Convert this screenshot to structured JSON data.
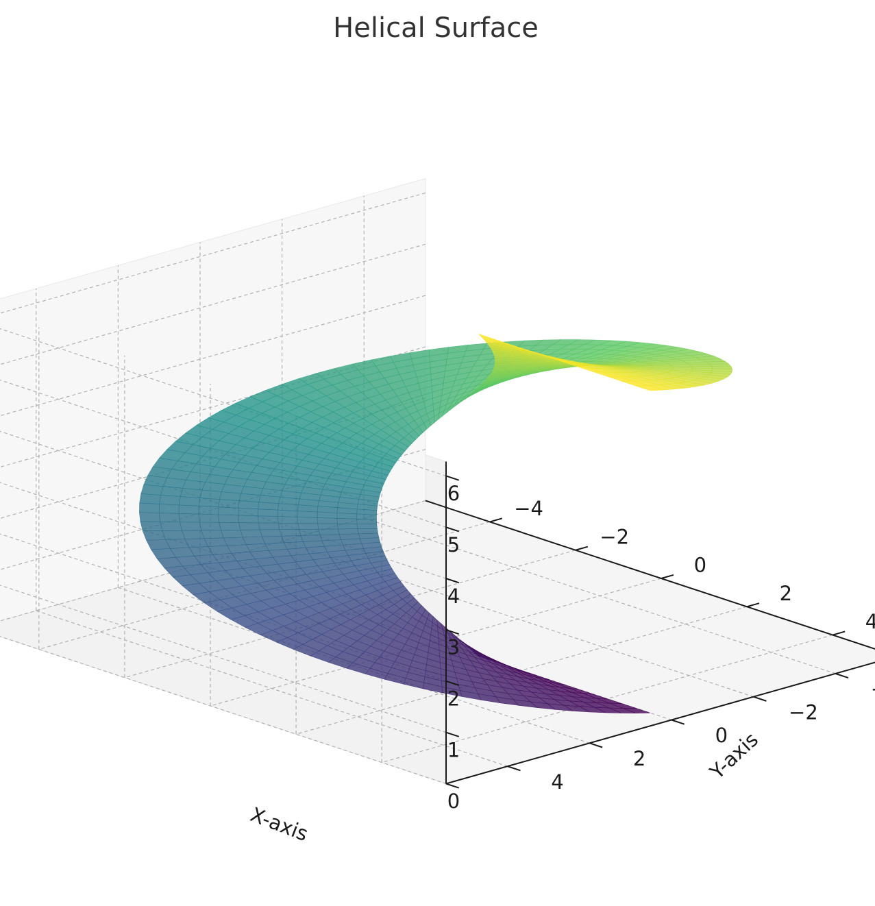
{
  "chart_data": {
    "type": "surface3d",
    "title": "Helical Surface",
    "xlabel": "X-axis",
    "ylabel": "Y-axis",
    "zlabel": "",
    "xlim": [
      -5.5,
      5.5
    ],
    "ylim": [
      -5.5,
      5.5
    ],
    "zlim": [
      0,
      6.28
    ],
    "xticks": [
      -4,
      -2,
      0,
      2,
      4
    ],
    "yticks": [
      -4,
      -2,
      0,
      2,
      4
    ],
    "zticks": [
      0,
      1,
      2,
      3,
      4,
      5,
      6
    ],
    "surface": {
      "equation": "x = r·cos(θ), y = r·sin(θ), z = θ",
      "r_range": [
        1,
        5
      ],
      "theta_range": [
        0,
        6.283
      ],
      "colormap": "viridis",
      "colormap_stops": [
        "#440154",
        "#3b528b",
        "#21918c",
        "#5ec962",
        "#fde725"
      ],
      "alpha": 0.8
    },
    "grid": true,
    "pane_color": "#f2f2f2"
  }
}
